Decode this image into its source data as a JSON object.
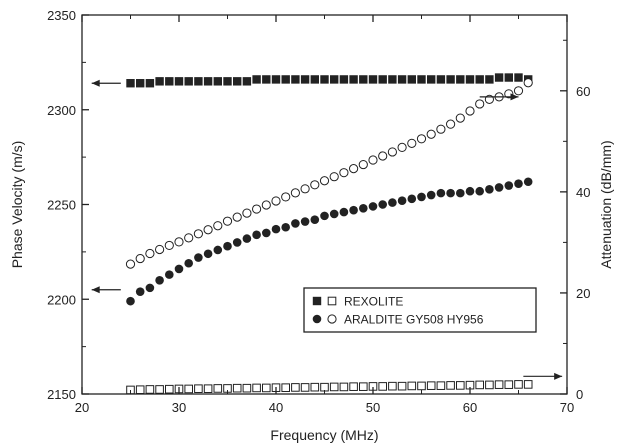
{
  "chart_data": {
    "type": "scatter",
    "xlabel": "Frequency (MHz)",
    "ylabel_left": "Phase Velocity (m/s)",
    "ylabel_right": "Attenuation (dB/mm)",
    "xlim": [
      20,
      70
    ],
    "ylim_left": [
      2150,
      2350
    ],
    "ylim_right": [
      0,
      75
    ],
    "x_ticks": [
      "20",
      "30",
      "40",
      "50",
      "60",
      "70"
    ],
    "y_ticks_left": [
      "2150",
      "2200",
      "2250",
      "2300",
      "2350"
    ],
    "y_ticks_right": [
      "0",
      "20",
      "40",
      "60"
    ],
    "grid": false,
    "legend_position": "lower-right",
    "legend": [
      {
        "label": "REXOLITE"
      },
      {
        "label": "ARALDITE GY508 HY956"
      }
    ],
    "series": [
      {
        "name": "REXOLITE",
        "quantity": "phase velocity",
        "axis": "left",
        "marker": "filled-square",
        "x": [
          25,
          26,
          27,
          28,
          29,
          30,
          31,
          32,
          33,
          34,
          35,
          36,
          37,
          38,
          39,
          40,
          41,
          42,
          43,
          44,
          45,
          46,
          47,
          48,
          49,
          50,
          51,
          52,
          53,
          54,
          55,
          56,
          57,
          58,
          59,
          60,
          61,
          62,
          63,
          64,
          65,
          66
        ],
        "y": [
          2314,
          2314,
          2314,
          2315,
          2315,
          2315,
          2315,
          2315,
          2315,
          2315,
          2315,
          2315,
          2315,
          2316,
          2316,
          2316,
          2316,
          2316,
          2316,
          2316,
          2316,
          2316,
          2316,
          2316,
          2316,
          2316,
          2316,
          2316,
          2316,
          2316,
          2316,
          2316,
          2316,
          2316,
          2316,
          2316,
          2316,
          2316,
          2317,
          2317,
          2317,
          2316
        ]
      },
      {
        "name": "REXOLITE",
        "quantity": "attenuation",
        "axis": "right",
        "marker": "open-square",
        "x": [
          25,
          26,
          27,
          28,
          29,
          30,
          31,
          32,
          33,
          34,
          35,
          36,
          37,
          38,
          39,
          40,
          41,
          42,
          43,
          44,
          45,
          46,
          47,
          48,
          49,
          50,
          51,
          52,
          53,
          54,
          55,
          56,
          57,
          58,
          59,
          60,
          61,
          62,
          63,
          64,
          65,
          66
        ],
        "y": [
          0.8,
          0.85,
          0.9,
          0.9,
          0.95,
          1.0,
          1.0,
          1.05,
          1.05,
          1.1,
          1.1,
          1.15,
          1.15,
          1.2,
          1.2,
          1.25,
          1.25,
          1.3,
          1.3,
          1.35,
          1.35,
          1.4,
          1.4,
          1.45,
          1.45,
          1.5,
          1.5,
          1.55,
          1.55,
          1.6,
          1.6,
          1.65,
          1.65,
          1.7,
          1.7,
          1.75,
          1.8,
          1.8,
          1.85,
          1.85,
          1.9,
          1.9
        ]
      },
      {
        "name": "ARALDITE GY508 HY956",
        "quantity": "phase velocity",
        "axis": "left",
        "marker": "filled-circle",
        "x": [
          25,
          26,
          27,
          28,
          29,
          30,
          31,
          32,
          33,
          34,
          35,
          36,
          37,
          38,
          39,
          40,
          41,
          42,
          43,
          44,
          45,
          46,
          47,
          48,
          49,
          50,
          51,
          52,
          53,
          54,
          55,
          56,
          57,
          58,
          59,
          60,
          61,
          62,
          63,
          64,
          65,
          66
        ],
        "y": [
          2199,
          2204,
          2206,
          2210,
          2213,
          2216,
          2219,
          2222,
          2224,
          2226,
          2228,
          2230,
          2232,
          2234,
          2235,
          2237,
          2238,
          2240,
          2241,
          2242,
          2244,
          2245,
          2246,
          2247,
          2248,
          2249,
          2250,
          2251,
          2252,
          2253,
          2254,
          2255,
          2256,
          2256,
          2256,
          2257,
          2257,
          2258,
          2259,
          2260,
          2261,
          2262
        ]
      },
      {
        "name": "ARALDITE GY508 HY956",
        "quantity": "attenuation",
        "axis": "right",
        "marker": "open-circle",
        "x": [
          25,
          26,
          27,
          28,
          29,
          30,
          31,
          32,
          33,
          34,
          35,
          36,
          37,
          38,
          39,
          40,
          41,
          42,
          43,
          44,
          45,
          46,
          47,
          48,
          49,
          50,
          51,
          52,
          53,
          54,
          55,
          56,
          57,
          58,
          59,
          60,
          61,
          62,
          63,
          64,
          65,
          66
        ],
        "y": [
          25.7,
          26.8,
          27.8,
          28.6,
          29.4,
          30.1,
          30.9,
          31.7,
          32.5,
          33.3,
          34.2,
          35.0,
          35.8,
          36.6,
          37.4,
          38.2,
          39.0,
          39.8,
          40.6,
          41.4,
          42.2,
          43.0,
          43.8,
          44.6,
          45.4,
          46.3,
          47.1,
          47.9,
          48.8,
          49.6,
          50.5,
          51.4,
          52.4,
          53.4,
          54.6,
          56.0,
          57.4,
          58.3,
          58.8,
          59.4,
          60.0,
          61.6
        ]
      }
    ],
    "annotations": [
      {
        "type": "arrow",
        "direction": "left",
        "series": "REXOLITE",
        "quantity": "phase velocity",
        "axis": "left",
        "x_from": 24,
        "x_to": 21,
        "y": 2314
      },
      {
        "type": "arrow",
        "direction": "right",
        "series": "ARALDITE GY508 HY956",
        "quantity": "attenuation",
        "axis": "right",
        "x_from": 61,
        "x_to": 65,
        "y": 58.8
      },
      {
        "type": "arrow",
        "direction": "left",
        "series": "ARALDITE GY508 HY956",
        "quantity": "phase velocity",
        "axis": "left",
        "x_from": 24,
        "x_to": 21,
        "y": 2205
      },
      {
        "type": "arrow",
        "direction": "right",
        "series": "REXOLITE",
        "quantity": "attenuation",
        "axis": "right",
        "x_from": 65.5,
        "x_to": 69.5,
        "y": 3.5
      }
    ]
  }
}
